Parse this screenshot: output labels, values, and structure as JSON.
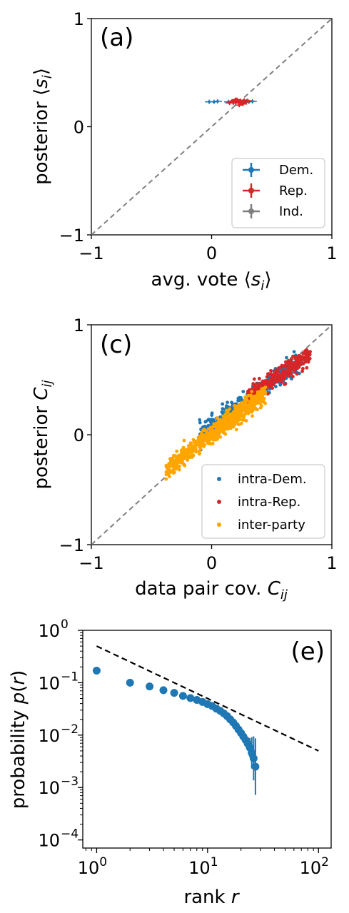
{
  "chart_data": [
    {
      "type": "scatter",
      "panel_label": "(a)",
      "xlabel": "avg. vote ⟨s_i⟩",
      "ylabel": "posterior ⟨s_i⟩",
      "xlim": [
        -1,
        1
      ],
      "ylim": [
        -1,
        1
      ],
      "xticks": [
        "−1",
        "0",
        "1"
      ],
      "yticks": [
        "−1",
        "0",
        "1"
      ],
      "diagonal": true,
      "legend_position": "lower-right",
      "series": [
        {
          "name": "Dem.",
          "color": "#1f77b4",
          "marker": "errorbar",
          "points": [
            [
              -0.02,
              0.23
            ],
            [
              0.02,
              0.23
            ],
            [
              0.05,
              0.235
            ],
            [
              0.14,
              0.23
            ],
            [
              0.18,
              0.235
            ],
            [
              0.22,
              0.24
            ],
            [
              0.26,
              0.23
            ],
            [
              0.29,
              0.235
            ],
            [
              0.31,
              0.23
            ],
            [
              0.34,
              0.235
            ],
            [
              0.2,
              0.22
            ],
            [
              0.24,
              0.22
            ]
          ]
        },
        {
          "name": "Rep.",
          "color": "#d62728",
          "marker": "errorbar",
          "points": [
            [
              0.15,
              0.22
            ],
            [
              0.17,
              0.235
            ],
            [
              0.19,
              0.24
            ],
            [
              0.21,
              0.25
            ],
            [
              0.22,
              0.23
            ],
            [
              0.24,
              0.24
            ],
            [
              0.25,
              0.22
            ],
            [
              0.27,
              0.245
            ],
            [
              0.28,
              0.23
            ],
            [
              0.3,
              0.24
            ],
            [
              0.23,
              0.2
            ],
            [
              0.26,
              0.21
            ],
            [
              0.2,
              0.25
            ],
            [
              0.18,
              0.22
            ]
          ]
        },
        {
          "name": "Ind.",
          "color": "#7f7f7f",
          "marker": "errorbar",
          "points": []
        }
      ]
    },
    {
      "type": "scatter",
      "panel_label": "(c)",
      "xlabel": "data pair cov. C_ij",
      "ylabel": "posterior C_ij",
      "xlim": [
        -1,
        1
      ],
      "ylim": [
        -1,
        1
      ],
      "xticks": [
        "−1",
        "0",
        "1"
      ],
      "yticks": [
        "−1",
        "0",
        "1"
      ],
      "diagonal": true,
      "legend_position": "lower-right",
      "series": [
        {
          "name": "intra-Dem.",
          "color": "#1f77b4",
          "center": [
            0.5,
            0.48
          ],
          "slope": 0.78,
          "xrange": [
            -0.1,
            0.75
          ],
          "spread": 0.045,
          "count": 300
        },
        {
          "name": "intra-Rep.",
          "color": "#d62728",
          "center": [
            0.55,
            0.53
          ],
          "slope": 0.75,
          "xrange": [
            0.3,
            0.82
          ],
          "spread": 0.04,
          "count": 300
        },
        {
          "name": "inter-party",
          "color": "#ffa500",
          "center": [
            0.0,
            0.0
          ],
          "slope": 0.85,
          "xrange": [
            -0.38,
            0.45
          ],
          "spread": 0.045,
          "count": 650
        }
      ]
    },
    {
      "type": "scatter",
      "panel_label": "(e)",
      "xlabel": "rank r",
      "ylabel": "probability p(r)",
      "xscale": "log",
      "yscale": "log",
      "xlim": [
        0.75,
        130
      ],
      "ylim": [
        7e-05,
        1
      ],
      "xticks": [
        {
          "base": "10",
          "exp": "0"
        },
        {
          "base": "10",
          "exp": "1"
        },
        {
          "base": "10",
          "exp": "2"
        }
      ],
      "yticks": [
        {
          "base": "10",
          "exp": "0"
        },
        {
          "base": "10",
          "exp": "−1"
        },
        {
          "base": "10",
          "exp": "−2"
        },
        {
          "base": "10",
          "exp": "−3"
        },
        {
          "base": "10",
          "exp": "−4"
        }
      ],
      "reference_line": {
        "style": "dashed",
        "color": "#000000",
        "x": [
          1,
          100
        ],
        "y": [
          0.5,
          0.005
        ]
      },
      "series": [
        {
          "color": "#1f77b4",
          "x": [
            1,
            2,
            3,
            4,
            5,
            6,
            7,
            8,
            9,
            10,
            11,
            12,
            13,
            14,
            15,
            16,
            17,
            18,
            19,
            20,
            21,
            22,
            23,
            24,
            25,
            26,
            27
          ],
          "y": [
            0.17,
            0.1,
            0.085,
            0.072,
            0.064,
            0.056,
            0.051,
            0.047,
            0.043,
            0.039,
            0.036,
            0.032,
            0.029,
            0.026,
            0.023,
            0.02,
            0.0175,
            0.015,
            0.0128,
            0.011,
            0.0094,
            0.0081,
            0.0069,
            0.0058,
            0.0046,
            0.0036,
            0.0025
          ]
        }
      ]
    }
  ]
}
